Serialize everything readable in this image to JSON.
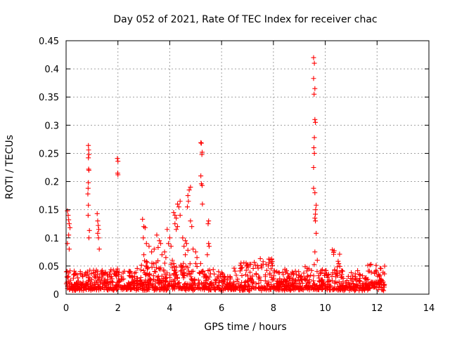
{
  "chart_data": {
    "type": "scatter",
    "title": "Day 052 of 2021, Rate Of TEC Index for receiver chac",
    "xlabel": "GPS time / hours",
    "ylabel": "ROTI / TECUs",
    "xlim": [
      0,
      14
    ],
    "ylim": [
      0,
      0.45
    ],
    "xticks": [
      "0",
      "2",
      "4",
      "6",
      "8",
      "10",
      "12",
      "14"
    ],
    "yticks": [
      "0",
      "0.05",
      "0.1",
      "0.15",
      "0.2",
      "0.25",
      "0.3",
      "0.35",
      "0.4",
      "0.45"
    ],
    "grid": true,
    "marker": "+",
    "color": "#ff0000",
    "series": [
      {
        "points": [
          [
            0.05,
            0.148
          ],
          [
            0.08,
            0.14
          ],
          [
            0.1,
            0.132
          ],
          [
            0.12,
            0.125
          ],
          [
            0.15,
            0.118
          ],
          [
            0.1,
            0.105
          ],
          [
            0.05,
            0.09
          ],
          [
            0.12,
            0.08
          ],
          [
            0.86,
            0.264
          ],
          [
            0.87,
            0.256
          ],
          [
            0.88,
            0.248
          ],
          [
            0.86,
            0.242
          ],
          [
            0.87,
            0.222
          ],
          [
            0.88,
            0.22
          ],
          [
            0.86,
            0.198
          ],
          [
            0.85,
            0.188
          ],
          [
            0.84,
            0.178
          ],
          [
            0.86,
            0.158
          ],
          [
            0.85,
            0.14
          ],
          [
            0.9,
            0.113
          ],
          [
            0.88,
            0.1
          ],
          [
            1.2,
            0.143
          ],
          [
            1.22,
            0.13
          ],
          [
            1.24,
            0.122
          ],
          [
            1.26,
            0.115
          ],
          [
            1.22,
            0.108
          ],
          [
            1.25,
            0.1
          ],
          [
            1.28,
            0.08
          ],
          [
            1.98,
            0.241
          ],
          [
            2.0,
            0.236
          ],
          [
            1.99,
            0.215
          ],
          [
            2.0,
            0.212
          ],
          [
            2.95,
            0.133
          ],
          [
            3.0,
            0.12
          ],
          [
            3.05,
            0.118
          ],
          [
            2.98,
            0.1
          ],
          [
            3.1,
            0.09
          ],
          [
            3.2,
            0.085
          ],
          [
            3.3,
            0.075
          ],
          [
            3.0,
            0.07
          ],
          [
            3.1,
            0.058
          ],
          [
            3.5,
            0.105
          ],
          [
            3.6,
            0.095
          ],
          [
            3.65,
            0.09
          ],
          [
            3.55,
            0.083
          ],
          [
            3.4,
            0.08
          ],
          [
            3.7,
            0.07
          ],
          [
            3.9,
            0.115
          ],
          [
            4.0,
            0.1
          ],
          [
            3.95,
            0.09
          ],
          [
            4.05,
            0.085
          ],
          [
            3.8,
            0.075
          ],
          [
            3.85,
            0.065
          ],
          [
            4.1,
            0.06
          ],
          [
            4.15,
            0.145
          ],
          [
            4.2,
            0.14
          ],
          [
            4.25,
            0.135
          ],
          [
            4.3,
            0.16
          ],
          [
            4.35,
            0.155
          ],
          [
            4.4,
            0.165
          ],
          [
            4.2,
            0.125
          ],
          [
            4.25,
            0.115
          ],
          [
            4.3,
            0.12
          ],
          [
            4.4,
            0.14
          ],
          [
            4.5,
            0.1
          ],
          [
            4.6,
            0.095
          ],
          [
            4.55,
            0.085
          ],
          [
            4.65,
            0.09
          ],
          [
            4.7,
            0.078
          ],
          [
            4.6,
            0.07
          ],
          [
            4.7,
            0.175
          ],
          [
            4.75,
            0.185
          ],
          [
            4.8,
            0.19
          ],
          [
            4.72,
            0.165
          ],
          [
            4.68,
            0.155
          ],
          [
            4.8,
            0.13
          ],
          [
            4.85,
            0.12
          ],
          [
            4.9,
            0.08
          ],
          [
            5.0,
            0.075
          ],
          [
            5.05,
            0.065
          ],
          [
            5.2,
            0.269
          ],
          [
            5.22,
            0.268
          ],
          [
            5.25,
            0.252
          ],
          [
            5.24,
            0.248
          ],
          [
            5.2,
            0.21
          ],
          [
            5.22,
            0.196
          ],
          [
            5.25,
            0.193
          ],
          [
            5.26,
            0.16
          ],
          [
            5.5,
            0.13
          ],
          [
            5.48,
            0.125
          ],
          [
            5.5,
            0.09
          ],
          [
            5.52,
            0.085
          ],
          [
            5.45,
            0.07
          ],
          [
            9.55,
            0.42
          ],
          [
            9.58,
            0.41
          ],
          [
            9.55,
            0.383
          ],
          [
            9.6,
            0.365
          ],
          [
            9.57,
            0.355
          ],
          [
            9.6,
            0.31
          ],
          [
            9.62,
            0.305
          ],
          [
            9.58,
            0.278
          ],
          [
            9.56,
            0.26
          ],
          [
            9.58,
            0.25
          ],
          [
            9.55,
            0.225
          ],
          [
            9.55,
            0.188
          ],
          [
            9.6,
            0.18
          ],
          [
            9.65,
            0.158
          ],
          [
            9.63,
            0.15
          ],
          [
            9.62,
            0.142
          ],
          [
            9.6,
            0.135
          ],
          [
            9.62,
            0.13
          ],
          [
            9.65,
            0.108
          ],
          [
            9.6,
            0.075
          ]
        ]
      }
    ]
  }
}
